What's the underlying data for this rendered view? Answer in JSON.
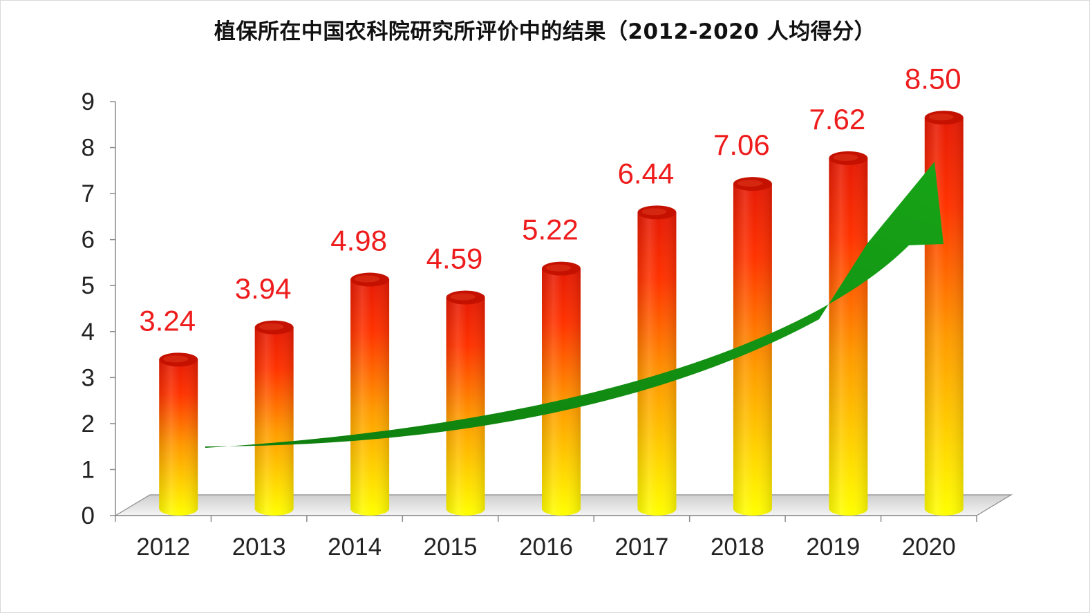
{
  "title": "植保所在中国农科院研究所评价中的结果（2012-2020 人均得分）",
  "chart_data": {
    "type": "bar",
    "title": "植保所在中国农科院研究所评价中的结果（2012-2020 人均得分）",
    "categories": [
      "2012",
      "2013",
      "2014",
      "2015",
      "2016",
      "2017",
      "2018",
      "2019",
      "2020"
    ],
    "values": [
      3.24,
      3.94,
      4.98,
      4.59,
      5.22,
      6.44,
      7.06,
      7.62,
      8.5
    ],
    "data_labels": [
      "3.24",
      "3.94",
      "4.98",
      "4.59",
      "5.22",
      "6.44",
      "7.06",
      "7.62",
      "8.50"
    ],
    "y_ticks": [
      "0",
      "1",
      "2",
      "3",
      "4",
      "5",
      "6",
      "7",
      "8",
      "9"
    ],
    "xlabel": "",
    "ylabel": "",
    "ylim": [
      0,
      9
    ],
    "grid": false,
    "legend": "none",
    "bar_style": "3d-cylinder",
    "trend_arrow": "green upward curve",
    "colors": {
      "bar_top": "#e61a05",
      "bar_mid": "#ff8c00",
      "bar_bottom": "#ffff00",
      "bar_cap": "#c51200",
      "label": "#ee1c1c",
      "arrow": "#129512",
      "floor": "#e5e5e5"
    }
  }
}
